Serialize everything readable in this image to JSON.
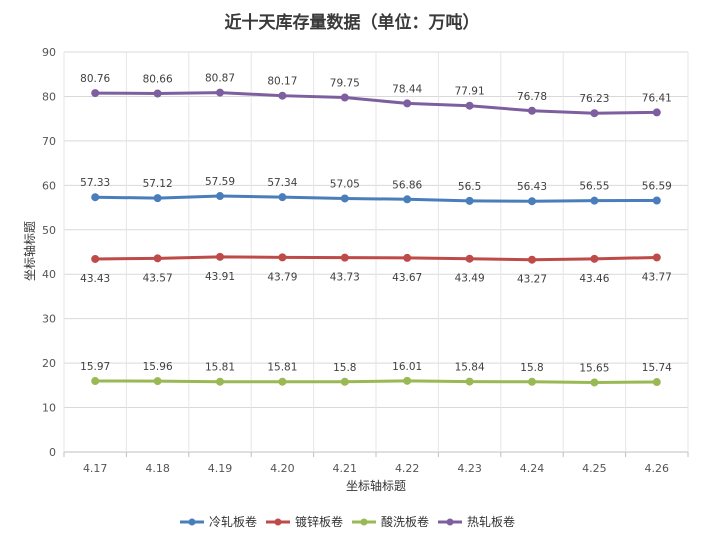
{
  "chart_data": {
    "type": "line",
    "title": "近十天库存量数据（单位：万吨）",
    "xlabel": "坐标轴标题",
    "ylabel": "坐标轴标题",
    "ylim": [
      0,
      90
    ],
    "yticks": [
      0,
      10,
      20,
      30,
      40,
      50,
      60,
      70,
      80,
      90
    ],
    "grid": true,
    "legend_position": "bottom",
    "categories": [
      "4.17",
      "4.18",
      "4.19",
      "4.20",
      "4.21",
      "4.22",
      "4.23",
      "4.24",
      "4.25",
      "4.26"
    ],
    "series": [
      {
        "name": "冷轧板卷",
        "color": "#4a7ebb",
        "label_position": "above",
        "values": [
          57.33,
          57.12,
          57.59,
          57.34,
          57.05,
          56.86,
          56.5,
          56.43,
          56.55,
          56.59
        ]
      },
      {
        "name": "镀锌板卷",
        "color": "#be4b48",
        "label_position": "below",
        "values": [
          43.43,
          43.57,
          43.91,
          43.79,
          43.73,
          43.67,
          43.49,
          43.27,
          43.46,
          43.77
        ]
      },
      {
        "name": "酸洗板卷",
        "color": "#98b954",
        "label_position": "above",
        "values": [
          15.97,
          15.96,
          15.81,
          15.81,
          15.8,
          16.01,
          15.84,
          15.8,
          15.65,
          15.74
        ]
      },
      {
        "name": "热轧板卷",
        "color": "#7d5fa0",
        "label_position": "above",
        "values": [
          80.76,
          80.66,
          80.87,
          80.17,
          79.75,
          78.44,
          77.91,
          76.78,
          76.23,
          76.41
        ]
      }
    ]
  }
}
